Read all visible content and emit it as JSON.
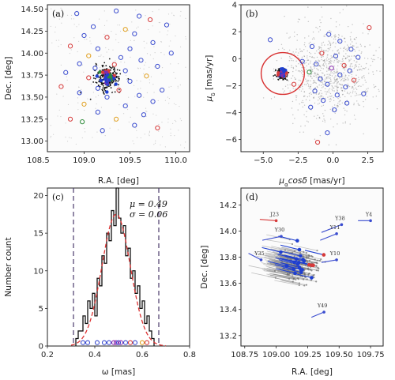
{
  "chart_data": [
    {
      "panel_label": "(a)",
      "type": "scatter",
      "xlabel": "R.A. [deg]",
      "ylabel": "Dec. [deg]",
      "xlim": [
        108.6,
        110.15
      ],
      "ylim": [
        12.88,
        14.55
      ],
      "xticks": [
        "108.5",
        "109.0",
        "109.5",
        "110.0"
      ],
      "xtick_vals": [
        108.5,
        109.0,
        109.5,
        110.0
      ],
      "yticks": [
        "13.00",
        "13.25",
        "13.50",
        "13.75",
        "14.00",
        "14.25",
        "14.50"
      ],
      "ytick_vals": [
        13.0,
        13.25,
        13.5,
        13.75,
        14.0,
        14.25,
        14.5
      ],
      "cluster_center": [
        109.26,
        13.72
      ],
      "circles": [
        {
          "x": 108.92,
          "y": 14.45,
          "color": "#3a4ccf"
        },
        {
          "x": 109.35,
          "y": 14.48,
          "color": "#3a4ccf"
        },
        {
          "x": 109.6,
          "y": 14.42,
          "color": "#3a4ccf"
        },
        {
          "x": 109.72,
          "y": 14.38,
          "color": "#d63a3a"
        },
        {
          "x": 109.9,
          "y": 14.32,
          "color": "#3a4ccf"
        },
        {
          "x": 109.1,
          "y": 14.3,
          "color": "#3a4ccf"
        },
        {
          "x": 109.45,
          "y": 14.27,
          "color": "#e0a020"
        },
        {
          "x": 109.55,
          "y": 14.22,
          "color": "#3a4ccf"
        },
        {
          "x": 109.0,
          "y": 14.2,
          "color": "#3a4ccf"
        },
        {
          "x": 109.25,
          "y": 14.18,
          "color": "#d63a3a"
        },
        {
          "x": 109.75,
          "y": 14.12,
          "color": "#3a4ccf"
        },
        {
          "x": 108.85,
          "y": 14.08,
          "color": "#d63a3a"
        },
        {
          "x": 109.15,
          "y": 14.05,
          "color": "#3a4ccf"
        },
        {
          "x": 109.5,
          "y": 14.05,
          "color": "#3a4ccf"
        },
        {
          "x": 109.95,
          "y": 14.0,
          "color": "#3a4ccf"
        },
        {
          "x": 109.05,
          "y": 13.97,
          "color": "#e0a020"
        },
        {
          "x": 109.4,
          "y": 13.95,
          "color": "#3a4ccf"
        },
        {
          "x": 109.62,
          "y": 13.92,
          "color": "#3a4ccf"
        },
        {
          "x": 108.95,
          "y": 13.88,
          "color": "#3a4ccf"
        },
        {
          "x": 109.33,
          "y": 13.87,
          "color": "#d63a3a"
        },
        {
          "x": 109.8,
          "y": 13.85,
          "color": "#3a4ccf"
        },
        {
          "x": 109.12,
          "y": 13.83,
          "color": "#3a4ccf"
        },
        {
          "x": 109.45,
          "y": 13.8,
          "color": "#3a4ccf"
        },
        {
          "x": 108.8,
          "y": 13.78,
          "color": "#3a4ccf"
        },
        {
          "x": 109.68,
          "y": 13.74,
          "color": "#e0a020"
        },
        {
          "x": 109.05,
          "y": 13.72,
          "color": "#d63a3a"
        },
        {
          "x": 109.5,
          "y": 13.68,
          "color": "#3a4ccf"
        },
        {
          "x": 108.75,
          "y": 13.62,
          "color": "#d63a3a"
        },
        {
          "x": 109.15,
          "y": 13.6,
          "color": "#3a4ccf"
        },
        {
          "x": 109.38,
          "y": 13.58,
          "color": "#d63a3a"
        },
        {
          "x": 109.85,
          "y": 13.58,
          "color": "#3a4ccf"
        },
        {
          "x": 108.95,
          "y": 13.55,
          "color": "#3a4ccf"
        },
        {
          "x": 109.6,
          "y": 13.52,
          "color": "#3a4ccf"
        },
        {
          "x": 109.25,
          "y": 13.5,
          "color": "#3a4ccf"
        },
        {
          "x": 109.75,
          "y": 13.45,
          "color": "#3a4ccf"
        },
        {
          "x": 109.0,
          "y": 13.42,
          "color": "#e0a020"
        },
        {
          "x": 109.45,
          "y": 13.4,
          "color": "#3a4ccf"
        },
        {
          "x": 109.15,
          "y": 13.33,
          "color": "#3a4ccf"
        },
        {
          "x": 109.65,
          "y": 13.3,
          "color": "#3a4ccf"
        },
        {
          "x": 108.85,
          "y": 13.25,
          "color": "#d63a3a"
        },
        {
          "x": 109.35,
          "y": 13.25,
          "color": "#e0a020"
        },
        {
          "x": 108.98,
          "y": 13.22,
          "color": "#2e8b3a"
        },
        {
          "x": 109.55,
          "y": 13.18,
          "color": "#3a4ccf"
        },
        {
          "x": 109.2,
          "y": 13.12,
          "color": "#3a4ccf"
        },
        {
          "x": 109.8,
          "y": 13.15,
          "color": "#d63a3a"
        }
      ]
    },
    {
      "panel_label": "(b)",
      "type": "scatter",
      "xlabel": "μ_α cosδ [mas/yr]",
      "ylabel": "μ_δ [mas/yr]",
      "xlim": [
        -6.6,
        3.6
      ],
      "ylim": [
        -6.9,
        4.0
      ],
      "xticks": [
        "−5.0",
        "−2.5",
        "0.0",
        "2.5"
      ],
      "xtick_vals": [
        -5.0,
        -2.5,
        0.0,
        2.5
      ],
      "yticks": [
        "−6",
        "−4",
        "−2",
        "0",
        "2",
        "4"
      ],
      "ytick_vals": [
        -6,
        -4,
        -2,
        0,
        2,
        4
      ],
      "selection_circle": {
        "cx": -3.6,
        "cy": -1.1,
        "r": 1.55
      },
      "circles": [
        {
          "x": -4.5,
          "y": 1.4,
          "color": "#3a4ccf"
        },
        {
          "x": 2.6,
          "y": 2.3,
          "color": "#d63a3a"
        },
        {
          "x": -0.3,
          "y": 1.8,
          "color": "#3a4ccf"
        },
        {
          "x": 0.5,
          "y": 1.3,
          "color": "#3a4ccf"
        },
        {
          "x": -1.5,
          "y": 0.9,
          "color": "#3a4ccf"
        },
        {
          "x": 1.3,
          "y": 0.7,
          "color": "#3a4ccf"
        },
        {
          "x": -0.8,
          "y": 0.4,
          "color": "#d63a3a"
        },
        {
          "x": 0.2,
          "y": 0.2,
          "color": "#3a4ccf"
        },
        {
          "x": 1.8,
          "y": 0.1,
          "color": "#3a4ccf"
        },
        {
          "x": -2.2,
          "y": -0.2,
          "color": "#3a4ccf"
        },
        {
          "x": -1.2,
          "y": -0.4,
          "color": "#3a4ccf"
        },
        {
          "x": 0.8,
          "y": -0.5,
          "color": "#d63a3a"
        },
        {
          "x": -0.1,
          "y": -0.7,
          "color": "#8b2fb0"
        },
        {
          "x": 1.2,
          "y": -0.9,
          "color": "#3a4ccf"
        },
        {
          "x": -1.7,
          "y": -1.0,
          "color": "#2e8b3a"
        },
        {
          "x": 0.5,
          "y": -1.2,
          "color": "#3a4ccf"
        },
        {
          "x": -0.9,
          "y": -1.5,
          "color": "#3a4ccf"
        },
        {
          "x": 1.5,
          "y": -1.6,
          "color": "#d63a3a"
        },
        {
          "x": -0.4,
          "y": -1.9,
          "color": "#3a4ccf"
        },
        {
          "x": 0.9,
          "y": -2.1,
          "color": "#3a4ccf"
        },
        {
          "x": -1.3,
          "y": -2.4,
          "color": "#3a4ccf"
        },
        {
          "x": 0.3,
          "y": -2.7,
          "color": "#3a4ccf"
        },
        {
          "x": 2.2,
          "y": -2.6,
          "color": "#3a4ccf"
        },
        {
          "x": -0.7,
          "y": -3.1,
          "color": "#3a4ccf"
        },
        {
          "x": 1.0,
          "y": -3.3,
          "color": "#3a4ccf"
        },
        {
          "x": -1.6,
          "y": -3.6,
          "color": "#3a4ccf"
        },
        {
          "x": 0.1,
          "y": -3.8,
          "color": "#3a4ccf"
        },
        {
          "x": -0.4,
          "y": -5.5,
          "color": "#3a4ccf"
        },
        {
          "x": -1.1,
          "y": -6.2,
          "color": "#d63a3a"
        },
        {
          "x": -2.8,
          "y": -1.9,
          "color": "#d63a3a"
        }
      ]
    },
    {
      "panel_label": "(c)",
      "type": "bar",
      "xlabel": "ω [mas]",
      "ylabel": "Number count",
      "xlim": [
        0.2,
        0.8
      ],
      "ylim": [
        0,
        21
      ],
      "xticks": [
        "0.2",
        "0.4",
        "0.6",
        "0.8"
      ],
      "xtick_vals": [
        0.2,
        0.4,
        0.6,
        0.8
      ],
      "yticks": [
        "0",
        "5",
        "10",
        "15",
        "20"
      ],
      "ytick_vals": [
        0,
        5,
        10,
        15,
        20
      ],
      "bin_width": 0.01,
      "bin_start": 0.32,
      "counts": [
        1,
        2,
        2,
        4,
        3,
        6,
        5,
        7,
        4,
        9,
        8,
        12,
        11,
        15,
        14,
        18,
        16,
        21,
        17,
        15,
        16,
        12,
        13,
        9,
        10,
        7,
        8,
        5,
        6,
        3,
        4,
        2,
        1
      ],
      "gaussian": {
        "mu": 0.49,
        "sigma": 0.06,
        "peak": 17.5
      },
      "dashed_lines": [
        0.31,
        0.67
      ],
      "annotations": [
        "μ = 0.49",
        "σ = 0.06"
      ],
      "parallax_points": [
        {
          "x": 0.35,
          "color": "#3a4ccf"
        },
        {
          "x": 0.37,
          "color": "#3a4ccf"
        },
        {
          "x": 0.41,
          "color": "#3a4ccf"
        },
        {
          "x": 0.44,
          "color": "#3a4ccf"
        },
        {
          "x": 0.46,
          "color": "#3a4ccf"
        },
        {
          "x": 0.48,
          "color": "#8b2fb0"
        },
        {
          "x": 0.49,
          "color": "#8b2fb0"
        },
        {
          "x": 0.5,
          "color": "#3a4ccf"
        },
        {
          "x": 0.51,
          "color": "#8b2fb0"
        },
        {
          "x": 0.53,
          "color": "#3a4ccf"
        },
        {
          "x": 0.55,
          "color": "#d63a3a"
        },
        {
          "x": 0.57,
          "color": "#3a4ccf"
        },
        {
          "x": 0.6,
          "color": "#e0a020"
        },
        {
          "x": 0.62,
          "color": "#d63a3a"
        }
      ]
    },
    {
      "panel_label": "(d)",
      "type": "scatter",
      "xlabel": "R.A. [deg]",
      "ylabel": "Dec. [deg]",
      "xlim": [
        108.72,
        109.85
      ],
      "ylim": [
        13.12,
        14.33
      ],
      "xticks": [
        "108.75",
        "109.00",
        "109.25",
        "109.50",
        "109.75"
      ],
      "xtick_vals": [
        108.75,
        109.0,
        109.25,
        109.5,
        109.75
      ],
      "yticks": [
        "13.2",
        "13.4",
        "13.6",
        "13.8",
        "14.0",
        "14.2"
      ],
      "ytick_vals": [
        13.2,
        13.4,
        13.6,
        13.8,
        14.0,
        14.2
      ],
      "stars": [
        {
          "label": "J23",
          "x": 109.0,
          "y": 14.08,
          "dx": -0.13,
          "dy": 0.01,
          "color": "#d63a3a"
        },
        {
          "label": "Y38",
          "x": 109.52,
          "y": 14.05,
          "dx": -0.16,
          "dy": -0.06,
          "color": "#3a4ccf"
        },
        {
          "label": "Y4",
          "x": 109.75,
          "y": 14.08,
          "dx": -0.1,
          "dy": 0.0,
          "color": "#3a4ccf"
        },
        {
          "label": "Y30",
          "x": 109.04,
          "y": 13.96,
          "dx": -0.15,
          "dy": -0.03,
          "color": "#3a4ccf"
        },
        {
          "label": "Y11",
          "x": 109.48,
          "y": 13.98,
          "dx": -0.13,
          "dy": -0.05,
          "color": "#3a4ccf"
        },
        {
          "label": "Y35",
          "x": 108.88,
          "y": 13.78,
          "dx": -0.1,
          "dy": 0.05,
          "color": "#3a4ccf"
        },
        {
          "label": "Y10",
          "x": 109.48,
          "y": 13.78,
          "dx": -0.12,
          "dy": -0.02,
          "color": "#3a4ccf"
        },
        {
          "label": "Y49",
          "x": 109.38,
          "y": 13.38,
          "dx": -0.1,
          "dy": -0.04,
          "color": "#3a4ccf"
        }
      ]
    }
  ]
}
